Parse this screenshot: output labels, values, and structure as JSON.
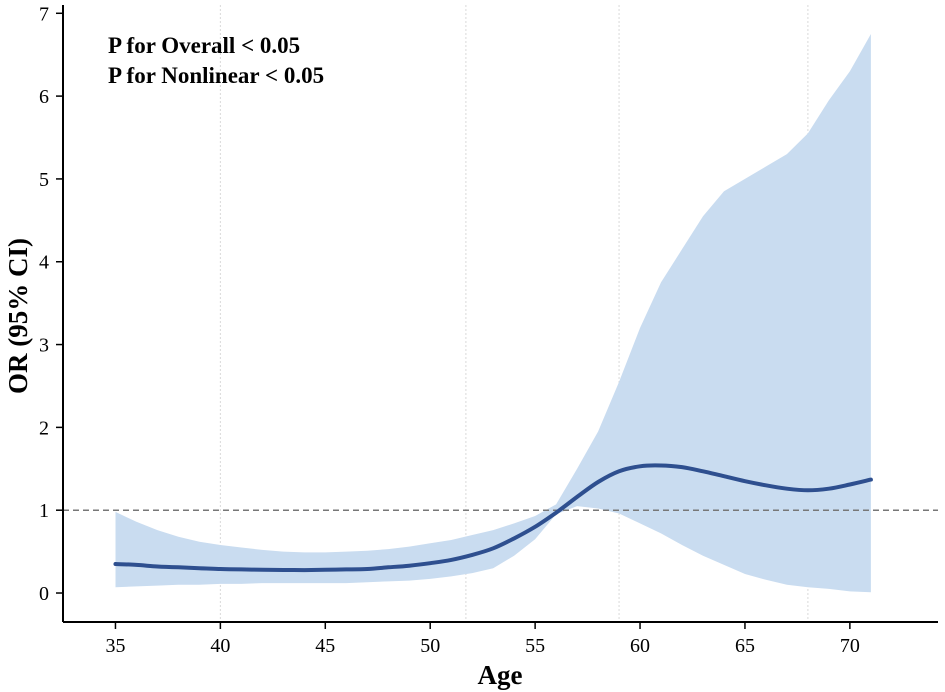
{
  "chart_data": {
    "type": "line",
    "xlabel": "Age",
    "ylabel": "OR (95% CI)",
    "xlim": [
      32.5,
      74.2
    ],
    "ylim": [
      -0.35,
      7.1
    ],
    "x_ticks": [
      35,
      40,
      45,
      50,
      55,
      60,
      65,
      70
    ],
    "y_ticks": [
      0,
      1,
      2,
      3,
      4,
      5,
      6,
      7
    ],
    "annotations": [
      "P for Overall < 0.05",
      "P for Nonlinear < 0.05"
    ],
    "reference_line": {
      "y": 1,
      "style": "dashed"
    },
    "vertical_lines_x": [
      40,
      51.7,
      59,
      68
    ],
    "series": [
      {
        "x": [
          35,
          36,
          37,
          38,
          39,
          40,
          41,
          42,
          43,
          44,
          45,
          46,
          47,
          48,
          49,
          50,
          51,
          52,
          53,
          54,
          55,
          56,
          57,
          58,
          59,
          60,
          61,
          62,
          63,
          64,
          65,
          66,
          67,
          68,
          69,
          70,
          71
        ],
        "y": [
          0.35,
          0.34,
          0.32,
          0.31,
          0.3,
          0.29,
          0.285,
          0.28,
          0.278,
          0.277,
          0.28,
          0.285,
          0.29,
          0.31,
          0.33,
          0.36,
          0.4,
          0.46,
          0.54,
          0.66,
          0.8,
          0.97,
          1.16,
          1.34,
          1.47,
          1.53,
          1.54,
          1.52,
          1.47,
          1.41,
          1.35,
          1.3,
          1.26,
          1.24,
          1.26,
          1.31,
          1.37
        ],
        "lower": [
          0.07,
          0.08,
          0.09,
          0.1,
          0.1,
          0.11,
          0.11,
          0.12,
          0.12,
          0.12,
          0.12,
          0.12,
          0.13,
          0.14,
          0.15,
          0.17,
          0.2,
          0.24,
          0.3,
          0.45,
          0.65,
          0.95,
          1.05,
          1.02,
          0.96,
          0.84,
          0.72,
          0.58,
          0.45,
          0.34,
          0.23,
          0.16,
          0.1,
          0.07,
          0.05,
          0.02,
          0.01
        ],
        "upper": [
          0.98,
          0.86,
          0.76,
          0.68,
          0.62,
          0.58,
          0.55,
          0.52,
          0.5,
          0.49,
          0.49,
          0.5,
          0.51,
          0.53,
          0.56,
          0.6,
          0.64,
          0.7,
          0.76,
          0.84,
          0.93,
          1.07,
          1.5,
          1.95,
          2.55,
          3.2,
          3.75,
          4.15,
          4.55,
          4.85,
          5.0,
          5.15,
          5.3,
          5.55,
          5.95,
          6.3,
          6.75
        ]
      }
    ],
    "colors": {
      "line": "#2e4f8f",
      "band": "#c9dcf0"
    }
  }
}
